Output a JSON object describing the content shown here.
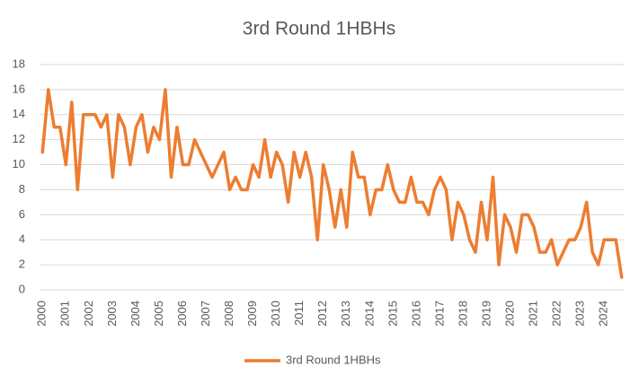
{
  "chart_data": {
    "type": "line",
    "title": "3rd Round 1HBHs",
    "categories": [
      "2000",
      null,
      null,
      null,
      "2001",
      null,
      null,
      null,
      "2002",
      null,
      null,
      null,
      "2003",
      null,
      null,
      null,
      "2004",
      null,
      null,
      null,
      "2005",
      null,
      null,
      null,
      "2006",
      null,
      null,
      null,
      "2007",
      null,
      null,
      null,
      "2008",
      null,
      null,
      null,
      "2009",
      null,
      null,
      null,
      "2010",
      null,
      null,
      null,
      "2011",
      null,
      null,
      null,
      "2012",
      null,
      null,
      null,
      "2013",
      null,
      null,
      null,
      "2014",
      null,
      null,
      null,
      "2015",
      null,
      null,
      null,
      "2016",
      null,
      null,
      null,
      "2017",
      null,
      null,
      null,
      "2018",
      null,
      null,
      null,
      "2019",
      null,
      null,
      null,
      "2020",
      null,
      null,
      null,
      "2021",
      null,
      null,
      null,
      "2022",
      null,
      null,
      null,
      "2023",
      null,
      null,
      null,
      "2024",
      null,
      null,
      null
    ],
    "series": [
      {
        "name": "3rd Round 1HBHs",
        "color": "#ed7d31",
        "values": [
          11,
          16,
          13,
          13,
          10,
          15,
          8,
          14,
          14,
          14,
          13,
          14,
          9,
          14,
          13,
          10,
          13,
          14,
          11,
          13,
          12,
          16,
          9,
          13,
          10,
          10,
          12,
          11,
          10,
          9,
          10,
          11,
          8,
          9,
          8,
          8,
          10,
          9,
          12,
          9,
          11,
          10,
          7,
          11,
          9,
          11,
          9,
          4,
          10,
          8,
          5,
          8,
          5,
          11,
          9,
          9,
          6,
          8,
          8,
          10,
          8,
          7,
          7,
          9,
          7,
          7,
          6,
          8,
          9,
          8,
          4,
          7,
          6,
          4,
          3,
          7,
          4,
          9,
          2,
          6,
          5,
          3,
          6,
          6,
          5,
          3,
          3,
          4,
          2,
          3,
          4,
          4,
          5,
          7,
          3,
          2,
          4,
          4,
          4,
          1
        ]
      }
    ],
    "ylim": [
      0,
      18
    ],
    "yticks": [
      0,
      2,
      4,
      6,
      8,
      10,
      12,
      14,
      16,
      18
    ],
    "grid": true,
    "legend": "bottom"
  }
}
